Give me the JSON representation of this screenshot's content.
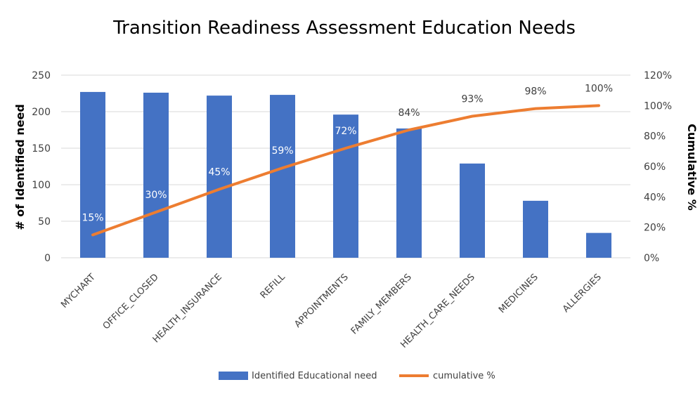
{
  "chart_data": {
    "type": "bar",
    "title": "Transition Readiness Assessment Education Needs",
    "categories": [
      "MYCHART",
      "OFFICE_CLOSED",
      "HEALTH_INSURANCE",
      "REFILL",
      "APPOINTMENTS",
      "FAMILY_MEMBERS",
      "HEALTH_CARE_NEEDS",
      "MEDICINES",
      "ALLERGIES"
    ],
    "series": [
      {
        "name": "Identified Educational need",
        "type": "bar",
        "axis": "left",
        "color": "#4472C4",
        "values": [
          227,
          226,
          222,
          223,
          196,
          177,
          129,
          78,
          34
        ]
      },
      {
        "name": "cumulative %",
        "type": "line",
        "axis": "right",
        "color": "#ED7D31",
        "values": [
          15,
          30,
          45,
          59,
          72,
          84,
          93,
          98,
          100
        ],
        "labels": [
          "15%",
          "30%",
          "45%",
          "59%",
          "72%",
          "84%",
          "93%",
          "98%",
          "100%"
        ]
      }
    ],
    "ylabel": "# of Identified need",
    "y2label": "Cumulative %",
    "ylim": [
      0,
      250
    ],
    "y2lim": [
      0,
      120
    ],
    "yticks": [
      "0",
      "50",
      "100",
      "150",
      "200",
      "250"
    ],
    "y2ticks": [
      "0%",
      "20%",
      "40%",
      "60%",
      "80%",
      "100%",
      "120%"
    ],
    "grid": true,
    "legend_position": "bottom"
  }
}
